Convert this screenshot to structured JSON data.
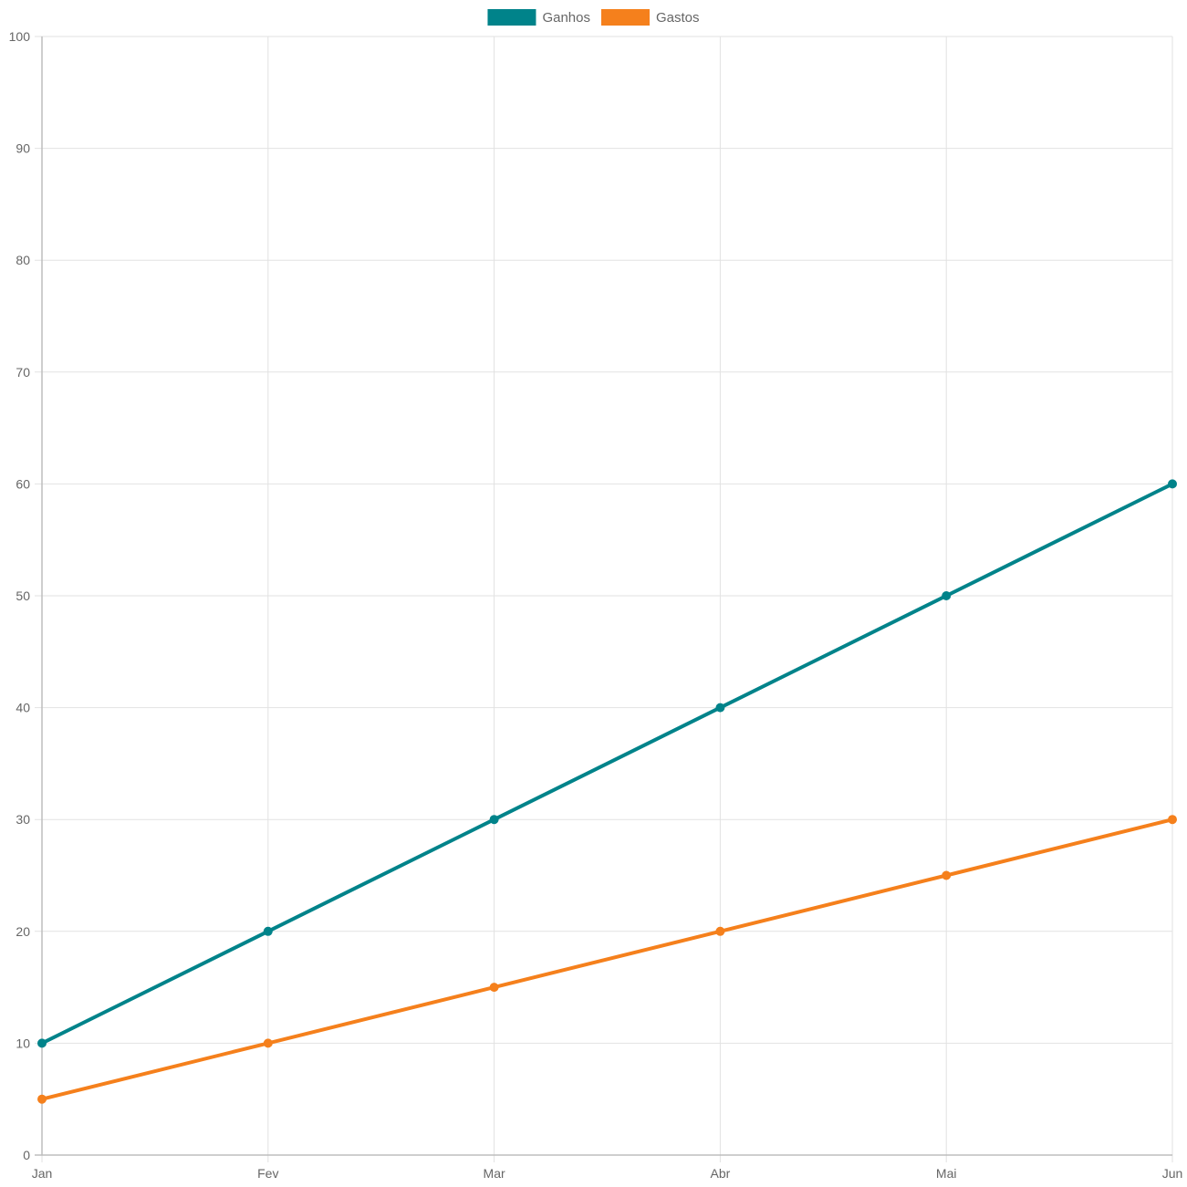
{
  "chart_data": {
    "type": "line",
    "categories": [
      "Jan",
      "Fev",
      "Mar",
      "Abr",
      "Mai",
      "Jun"
    ],
    "series": [
      {
        "name": "Ganhos",
        "values": [
          10,
          20,
          30,
          40,
          50,
          60
        ],
        "color": "#00838a"
      },
      {
        "name": "Gastos",
        "values": [
          5,
          10,
          15,
          20,
          25,
          30
        ],
        "color": "#f5801c"
      }
    ],
    "ylim": [
      0,
      100
    ],
    "yticks": [
      0,
      10,
      20,
      30,
      40,
      50,
      60,
      70,
      80,
      90,
      100
    ],
    "grid": true,
    "legend_position": "top-center"
  }
}
